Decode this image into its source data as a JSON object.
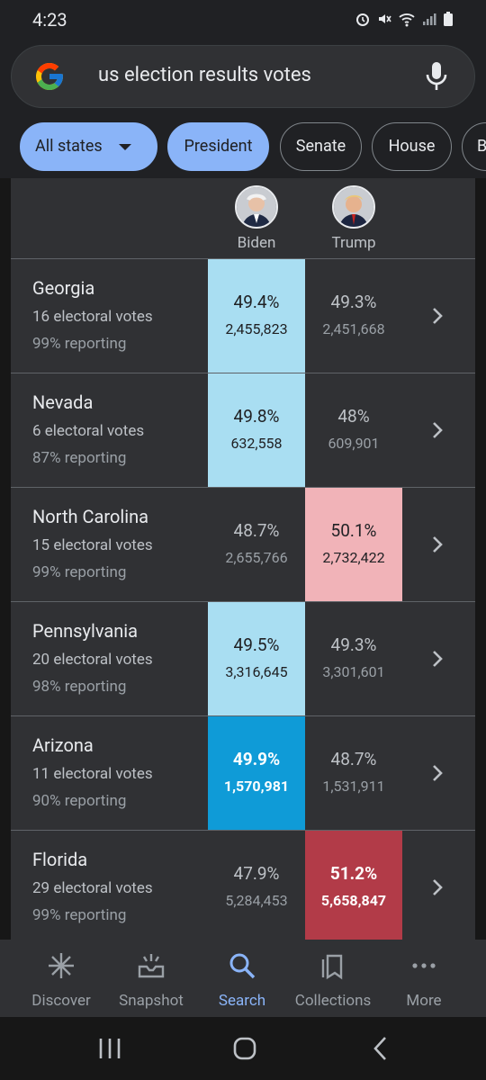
{
  "status_bar": {
    "time": "4:23",
    "icons": [
      "alarm-icon",
      "mute-icon",
      "wifi-icon",
      "signal-icon",
      "battery-icon"
    ]
  },
  "search": {
    "query": "us election results votes"
  },
  "chips": [
    {
      "label": "All states",
      "active": true,
      "dropdown": true
    },
    {
      "label": "President",
      "active": true
    },
    {
      "label": "Senate",
      "active": false
    },
    {
      "label": "House",
      "active": false
    },
    {
      "label": "B",
      "active": false
    }
  ],
  "candidates": [
    {
      "name": "Biden"
    },
    {
      "name": "Trump"
    }
  ],
  "colors": {
    "biden_light": "#a9def2",
    "biden_dark": "#0f9bd7",
    "trump_light": "#f1b3b8",
    "trump_dark": "#b23b48",
    "accent": "#8ab4f8"
  },
  "rows": [
    {
      "state": "Georgia",
      "electoral": "16 electoral votes",
      "reporting": "99% reporting",
      "biden": {
        "pct": "49.4%",
        "votes": "2,455,823"
      },
      "trump": {
        "pct": "49.3%",
        "votes": "2,451,668"
      },
      "leader": "biden",
      "called": false
    },
    {
      "state": "Nevada",
      "electoral": "6 electoral votes",
      "reporting": "87% reporting",
      "biden": {
        "pct": "49.8%",
        "votes": "632,558"
      },
      "trump": {
        "pct": "48%",
        "votes": "609,901"
      },
      "leader": "biden",
      "called": false
    },
    {
      "state": "North Carolina",
      "electoral": "15 electoral votes",
      "reporting": "99% reporting",
      "biden": {
        "pct": "48.7%",
        "votes": "2,655,766"
      },
      "trump": {
        "pct": "50.1%",
        "votes": "2,732,422"
      },
      "leader": "trump",
      "called": false
    },
    {
      "state": "Pennsylvania",
      "electoral": "20 electoral votes",
      "reporting": "98% reporting",
      "biden": {
        "pct": "49.5%",
        "votes": "3,316,645"
      },
      "trump": {
        "pct": "49.3%",
        "votes": "3,301,601"
      },
      "leader": "biden",
      "called": false
    },
    {
      "state": "Arizona",
      "electoral": "11 electoral votes",
      "reporting": "90% reporting",
      "biden": {
        "pct": "49.9%",
        "votes": "1,570,981"
      },
      "trump": {
        "pct": "48.7%",
        "votes": "1,531,911"
      },
      "leader": "biden",
      "called": true
    },
    {
      "state": "Florida",
      "electoral": "29 electoral votes",
      "reporting": "99% reporting",
      "biden": {
        "pct": "47.9%",
        "votes": "5,284,453"
      },
      "trump": {
        "pct": "51.2%",
        "votes": "5,658,847"
      },
      "leader": "trump",
      "called": true
    }
  ],
  "bottom_nav": [
    {
      "label": "Discover",
      "icon": "discover-icon",
      "active": false
    },
    {
      "label": "Snapshot",
      "icon": "snapshot-icon",
      "active": false
    },
    {
      "label": "Search",
      "icon": "search-icon",
      "active": true
    },
    {
      "label": "Collections",
      "icon": "collections-icon",
      "active": false
    },
    {
      "label": "More",
      "icon": "more-icon",
      "active": false
    }
  ]
}
